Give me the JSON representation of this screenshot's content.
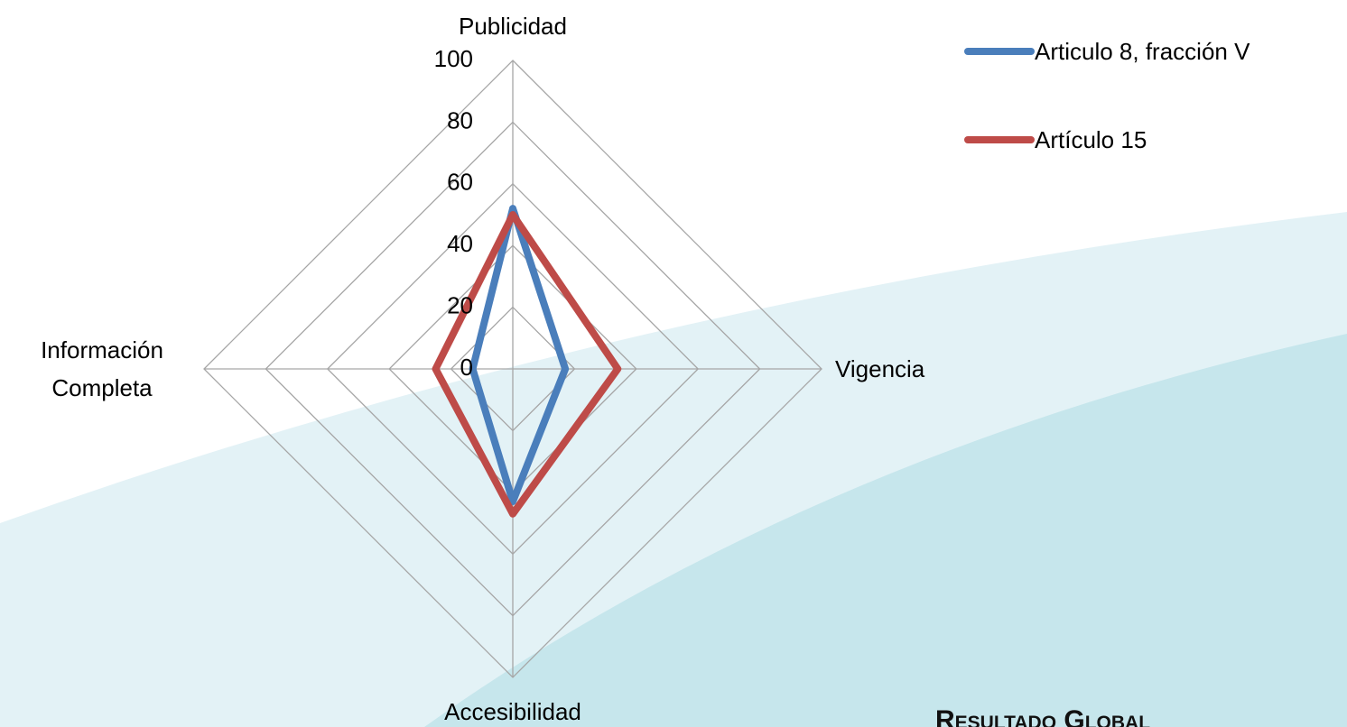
{
  "chart_data": {
    "type": "radar",
    "categories": [
      "Publicidad",
      "Vigencia",
      "Accesibilidad",
      "Información Completa"
    ],
    "series": [
      {
        "name": "Articulo 8, fracción  V",
        "color": "#4a7ebb",
        "values": [
          52,
          17,
          43,
          13
        ]
      },
      {
        "name": "Artículo 15",
        "color": "#be4b48",
        "values": [
          50,
          34,
          47,
          25
        ]
      }
    ],
    "ylim": [
      0,
      100
    ],
    "yticks": [
      0,
      20,
      40,
      60,
      80,
      100
    ],
    "grid": true,
    "legend": "top-right"
  },
  "slide_heading": "Resultado Global"
}
